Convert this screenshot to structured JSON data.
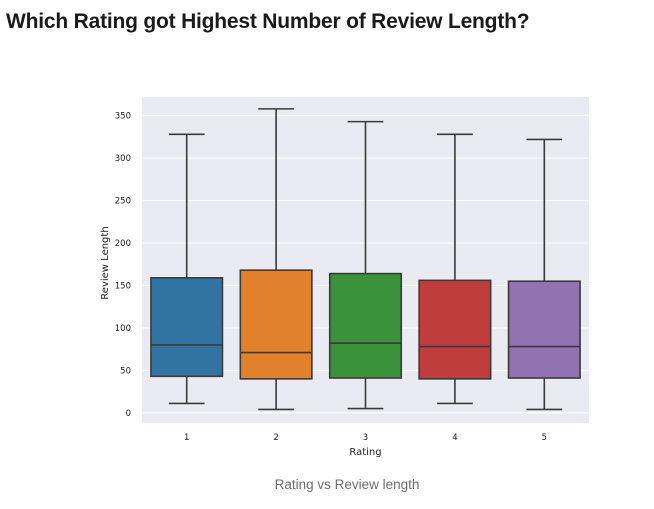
{
  "page": {
    "heading": "Which Rating got Highest Number of Review Length?",
    "caption": "Rating vs Review length"
  },
  "chart_data": {
    "type": "box",
    "title": "",
    "xlabel": "Rating",
    "ylabel": "Review Length",
    "categories": [
      "1",
      "2",
      "3",
      "4",
      "5"
    ],
    "boxes": [
      {
        "category": "1",
        "whisker_low": 11,
        "q1": 43,
        "median": 80,
        "q3": 159,
        "whisker_high": 328,
        "color": "#3274a1"
      },
      {
        "category": "2",
        "whisker_low": 4,
        "q1": 40,
        "median": 71,
        "q3": 168,
        "whisker_high": 358,
        "color": "#e1812c"
      },
      {
        "category": "3",
        "whisker_low": 5,
        "q1": 41,
        "median": 82,
        "q3": 164,
        "whisker_high": 343,
        "color": "#3a923a"
      },
      {
        "category": "4",
        "whisker_low": 11,
        "q1": 40,
        "median": 78,
        "q3": 156,
        "whisker_high": 328,
        "color": "#c03d3e"
      },
      {
        "category": "5",
        "whisker_low": 4,
        "q1": 41,
        "median": 78,
        "q3": 155,
        "whisker_high": 322,
        "color": "#9372b2"
      }
    ],
    "y_ticks": [
      0,
      50,
      100,
      150,
      200,
      250,
      300,
      350
    ],
    "ylim": [
      -12,
      372
    ],
    "grid": true,
    "background": "#eaeaf2",
    "grid_color": "#ffffff",
    "line_color": "#3a3a3a"
  }
}
